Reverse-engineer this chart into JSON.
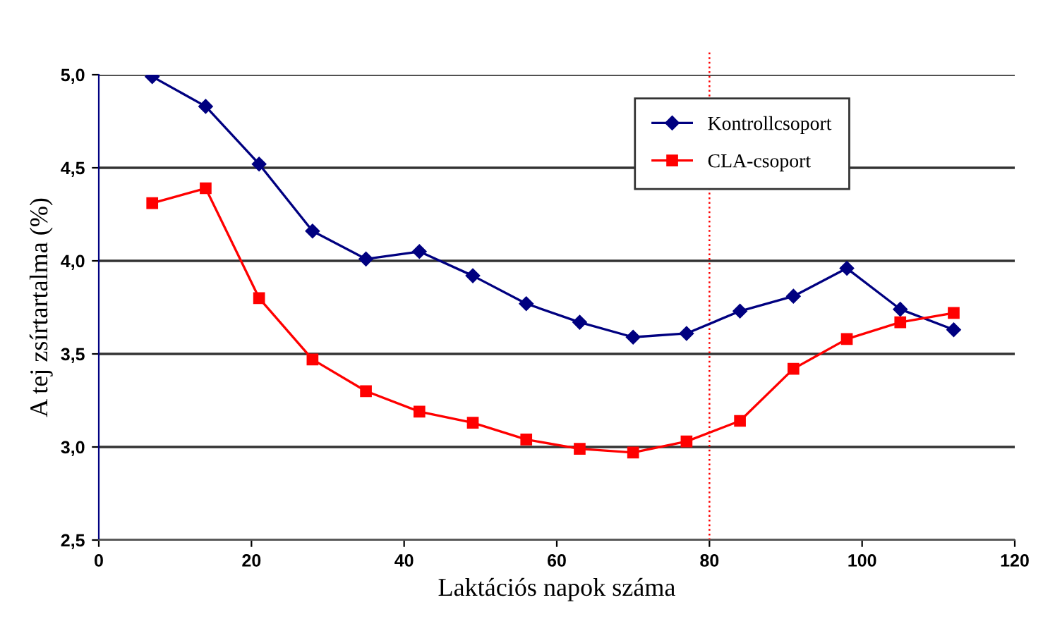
{
  "chart_data": {
    "type": "line",
    "xlabel": "Laktációs napok száma",
    "ylabel": "A tej zsírtartalma (%)",
    "x": [
      7,
      14,
      21,
      28,
      35,
      42,
      49,
      56,
      63,
      70,
      77,
      84,
      91,
      98,
      105,
      112
    ],
    "series": [
      {
        "name": "Kontrollcsoport",
        "color": "#000080",
        "marker": "diamond",
        "values": [
          4.99,
          4.83,
          4.52,
          4.16,
          4.01,
          4.05,
          3.92,
          3.77,
          3.67,
          3.59,
          3.61,
          3.73,
          3.81,
          3.96,
          3.74,
          3.63
        ]
      },
      {
        "name": "CLA-csoport",
        "color": "#ff0000",
        "marker": "square",
        "values": [
          4.31,
          4.39,
          3.8,
          3.47,
          3.3,
          3.19,
          3.13,
          3.04,
          2.99,
          2.97,
          3.03,
          3.14,
          3.42,
          3.58,
          3.67,
          3.72
        ]
      }
    ],
    "xlim": [
      0,
      120
    ],
    "xticks": [
      0,
      20,
      40,
      60,
      80,
      100,
      120
    ],
    "ylim": [
      2.5,
      5.0
    ],
    "yticks": [
      {
        "value": 2.5,
        "label": "2,5"
      },
      {
        "value": 3.0,
        "label": "3,0"
      },
      {
        "value": 3.5,
        "label": "3,5"
      },
      {
        "value": 4.0,
        "label": "4,0"
      },
      {
        "value": 4.5,
        "label": "4,5"
      },
      {
        "value": 5.0,
        "label": "5,0"
      }
    ],
    "grid": "y",
    "legend": "top right",
    "ref_lines": [
      {
        "axis": "x",
        "value": 80,
        "color": "#ff0000",
        "line_style": "dotted"
      }
    ]
  }
}
